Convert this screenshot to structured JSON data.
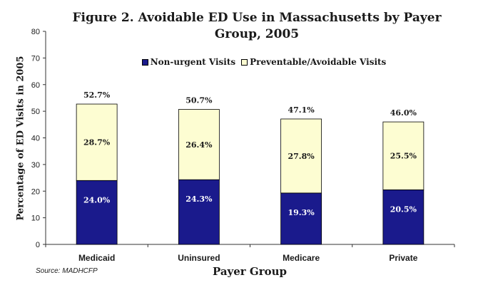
{
  "chart_data": {
    "type": "bar",
    "stacked": true,
    "title": "Figure 2. Avoidable ED Use in Massachusetts by Payer Group, 2005",
    "title_lines": [
      "Figure 2. Avoidable ED Use in Massachusetts by Payer",
      "Group, 2005"
    ],
    "xlabel": "Payer Group",
    "ylabel": "Percentage of ED Visits in 2005",
    "ylim": [
      0,
      80
    ],
    "yticks": [
      "0",
      "10",
      "20",
      "30",
      "40",
      "50",
      "60",
      "70",
      "80"
    ],
    "ytick_values": [
      0,
      10,
      20,
      30,
      40,
      50,
      60,
      70,
      80
    ],
    "categories": [
      "Medicaid",
      "Uninsured",
      "Medicare",
      "Private"
    ],
    "series": [
      {
        "name": "Non-urgent Visits",
        "values": [
          24.0,
          24.3,
          19.3,
          20.5
        ],
        "labels": [
          "24.0%",
          "24.3%",
          "19.3%",
          "20.5%"
        ],
        "color": "#1a1a8c"
      },
      {
        "name": "Preventable/Avoidable Visits",
        "values": [
          28.7,
          26.4,
          27.8,
          25.5
        ],
        "labels": [
          "28.7%",
          "26.4%",
          "27.8%",
          "25.5%"
        ],
        "color": "#fdfdd2"
      }
    ],
    "totals": [
      52.7,
      50.7,
      47.1,
      46.0
    ],
    "total_labels": [
      "52.7%",
      "50.7%",
      "47.1%",
      "46.0%"
    ],
    "legend_position": "top-center",
    "grid": false,
    "source": "Source: MADHCFP"
  }
}
